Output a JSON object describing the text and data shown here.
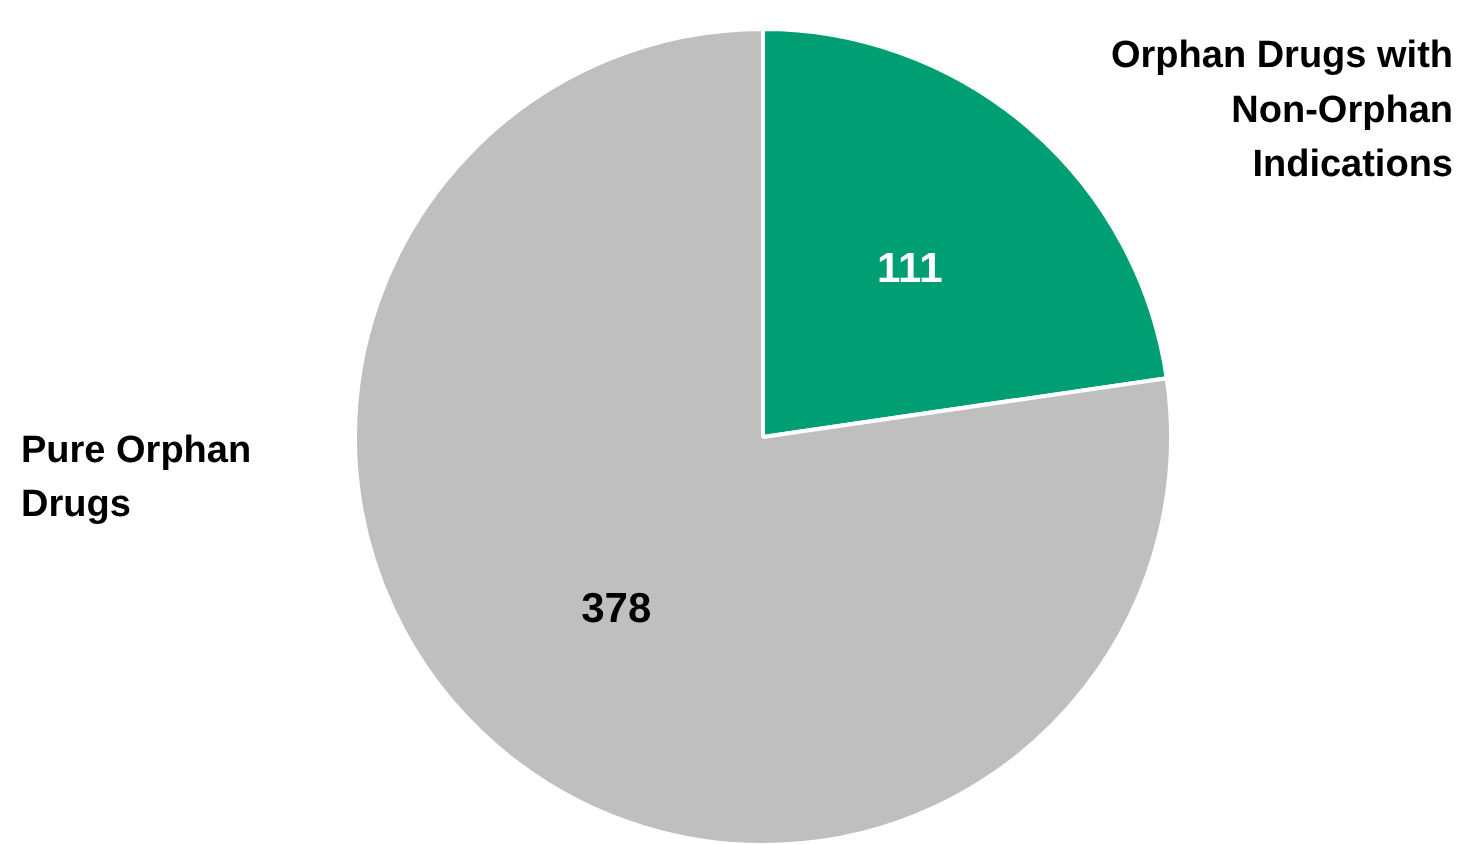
{
  "chart_data": {
    "type": "pie",
    "categories": [
      "Orphan Drugs with Non-Orphan Indications",
      "Pure Orphan Drugs"
    ],
    "values": [
      111,
      378
    ],
    "colors": [
      "#009e73",
      "#bfbfbf"
    ],
    "data_labels": true
  }
}
